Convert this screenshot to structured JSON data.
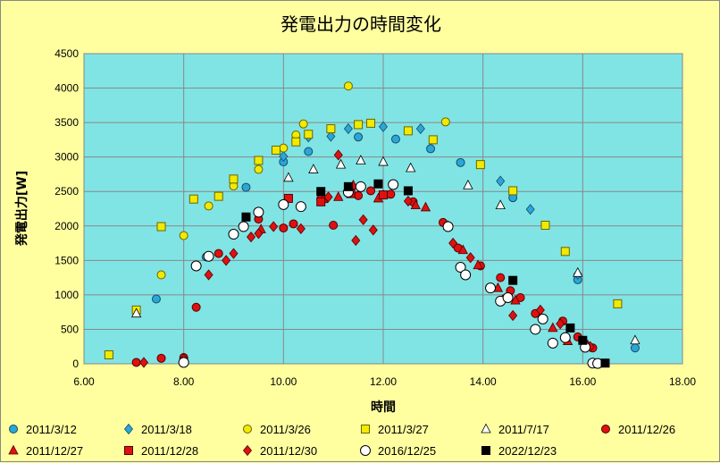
{
  "chart_data": {
    "type": "scatter",
    "title": "発電出力の時間変化",
    "xlabel": "時間",
    "ylabel": "発電出力[W]",
    "xlim": [
      6,
      18
    ],
    "ylim": [
      0,
      4500
    ],
    "xticks": [
      "6.00",
      "8.00",
      "10.00",
      "12.00",
      "14.00",
      "16.00",
      "18.00"
    ],
    "yticks": [
      "0",
      "500",
      "1000",
      "1500",
      "2000",
      "2500",
      "3000",
      "3500",
      "4000",
      "4500"
    ],
    "grid": true,
    "legend_position": "bottom",
    "plot_bg": "#80e4e4",
    "page_bg": "#ffffa0",
    "series": [
      {
        "name": "2011/3/12",
        "marker": "circle",
        "fill": "#2aa7d6",
        "stroke": "#1a4a6a",
        "points": [
          [
            7.45,
            940
          ],
          [
            8.45,
            1550
          ],
          [
            9.25,
            2560
          ],
          [
            10.0,
            2930
          ],
          [
            10.5,
            3080
          ],
          [
            11.5,
            3290
          ],
          [
            12.25,
            3260
          ],
          [
            12.95,
            3120
          ],
          [
            13.55,
            2920
          ],
          [
            14.6,
            2410
          ],
          [
            15.9,
            1220
          ],
          [
            17.05,
            230
          ]
        ]
      },
      {
        "name": "2011/3/18",
        "marker": "diamond",
        "fill": "#2aa7d6",
        "stroke": "#1a4a6a",
        "points": [
          [
            10.0,
            3010
          ],
          [
            10.5,
            3290
          ],
          [
            10.95,
            3300
          ],
          [
            11.3,
            3410
          ],
          [
            12.0,
            3440
          ],
          [
            12.75,
            3410
          ],
          [
            14.35,
            2650
          ],
          [
            14.95,
            2240
          ],
          [
            15.9,
            1300
          ]
        ]
      },
      {
        "name": "2011/3/26",
        "marker": "circle",
        "fill": "#f2ea00",
        "stroke": "#6b6500",
        "points": [
          [
            7.55,
            1290
          ],
          [
            8.0,
            1860
          ],
          [
            8.5,
            2290
          ],
          [
            9.0,
            2580
          ],
          [
            9.5,
            2820
          ],
          [
            10.0,
            3130
          ],
          [
            10.25,
            3320
          ],
          [
            10.4,
            3480
          ],
          [
            11.3,
            4030
          ],
          [
            13.25,
            3510
          ]
        ]
      },
      {
        "name": "2011/3/27",
        "marker": "square",
        "fill": "#f2ea00",
        "stroke": "#6b6500",
        "points": [
          [
            6.5,
            130
          ],
          [
            7.05,
            780
          ],
          [
            7.55,
            1990
          ],
          [
            8.2,
            2390
          ],
          [
            8.7,
            2430
          ],
          [
            9.0,
            2680
          ],
          [
            9.5,
            2950
          ],
          [
            9.85,
            3100
          ],
          [
            10.25,
            3220
          ],
          [
            10.5,
            3330
          ],
          [
            10.95,
            3410
          ],
          [
            11.5,
            3470
          ],
          [
            11.75,
            3490
          ],
          [
            12.5,
            3380
          ],
          [
            13.0,
            3250
          ],
          [
            13.95,
            2890
          ],
          [
            14.6,
            2510
          ],
          [
            15.25,
            2010
          ],
          [
            15.65,
            1630
          ],
          [
            16.7,
            870
          ]
        ]
      },
      {
        "name": "2011/7/17",
        "marker": "triangle-open",
        "fill": "#ffffff",
        "stroke": "#000000",
        "points": [
          [
            7.05,
            730
          ],
          [
            10.1,
            2700
          ],
          [
            10.6,
            2820
          ],
          [
            11.15,
            2890
          ],
          [
            11.55,
            2950
          ],
          [
            12.0,
            2930
          ],
          [
            12.55,
            2840
          ],
          [
            13.7,
            2590
          ],
          [
            14.35,
            2300
          ],
          [
            15.9,
            1320
          ],
          [
            17.05,
            340
          ]
        ]
      },
      {
        "name": "2011/12/26",
        "marker": "circle",
        "fill": "#e01010",
        "stroke": "#500000",
        "points": [
          [
            7.05,
            20
          ],
          [
            7.55,
            80
          ],
          [
            8.0,
            90
          ],
          [
            8.25,
            820
          ],
          [
            8.7,
            1600
          ],
          [
            9.5,
            2100
          ],
          [
            10.0,
            1970
          ],
          [
            10.2,
            2030
          ],
          [
            10.75,
            2390
          ],
          [
            11.0,
            2010
          ],
          [
            11.5,
            2440
          ],
          [
            11.75,
            2510
          ],
          [
            12.15,
            2460
          ],
          [
            12.6,
            2350
          ],
          [
            13.2,
            2050
          ],
          [
            13.5,
            1680
          ],
          [
            13.95,
            1420
          ],
          [
            14.35,
            1250
          ],
          [
            14.55,
            1060
          ],
          [
            14.75,
            960
          ],
          [
            15.05,
            730
          ],
          [
            15.6,
            620
          ],
          [
            15.9,
            390
          ],
          [
            16.2,
            230
          ]
        ]
      },
      {
        "name": "2011/12/27",
        "marker": "triangle",
        "fill": "#e01010",
        "stroke": "#500000",
        "points": [
          [
            9.55,
            1950
          ],
          [
            10.8,
            2390
          ],
          [
            11.1,
            2420
          ],
          [
            11.4,
            2590
          ],
          [
            11.9,
            2400
          ],
          [
            12.0,
            2450
          ],
          [
            12.65,
            2300
          ],
          [
            12.85,
            2270
          ],
          [
            13.3,
            2000
          ],
          [
            13.6,
            1650
          ],
          [
            13.9,
            1430
          ],
          [
            14.3,
            1100
          ],
          [
            14.65,
            920
          ],
          [
            15.4,
            520
          ],
          [
            15.7,
            330
          ],
          [
            16.1,
            270
          ]
        ]
      },
      {
        "name": "2011/12/28",
        "marker": "square",
        "fill": "#e01010",
        "stroke": "#500000",
        "points": [
          [
            10.1,
            2400
          ],
          [
            10.75,
            2350
          ],
          [
            11.35,
            2470
          ],
          [
            12.0,
            2450
          ]
        ]
      },
      {
        "name": "2011/12/30",
        "marker": "diamond",
        "fill": "#e01010",
        "stroke": "#500000",
        "points": [
          [
            7.2,
            20
          ],
          [
            8.0,
            70
          ],
          [
            8.5,
            1290
          ],
          [
            8.85,
            1500
          ],
          [
            9.0,
            1600
          ],
          [
            9.35,
            1840
          ],
          [
            9.5,
            1890
          ],
          [
            9.8,
            1990
          ],
          [
            10.35,
            1960
          ],
          [
            10.9,
            2420
          ],
          [
            11.1,
            3030
          ],
          [
            11.45,
            1790
          ],
          [
            11.6,
            2090
          ],
          [
            11.8,
            1940
          ],
          [
            12.5,
            2360
          ],
          [
            13.4,
            1750
          ],
          [
            13.75,
            1540
          ],
          [
            14.4,
            930
          ],
          [
            14.6,
            700
          ],
          [
            15.15,
            780
          ],
          [
            15.55,
            580
          ],
          [
            16.15,
            250
          ]
        ]
      },
      {
        "name": "2016/12/25",
        "marker": "circle-open",
        "fill": "#ffffff",
        "stroke": "#000000",
        "points": [
          [
            8.0,
            20
          ],
          [
            8.25,
            1420
          ],
          [
            8.5,
            1560
          ],
          [
            9.0,
            1880
          ],
          [
            9.2,
            1990
          ],
          [
            9.5,
            2200
          ],
          [
            10.0,
            2310
          ],
          [
            10.35,
            2280
          ],
          [
            11.3,
            2490
          ],
          [
            11.55,
            2570
          ],
          [
            12.2,
            2600
          ],
          [
            13.3,
            1990
          ],
          [
            13.55,
            1400
          ],
          [
            13.65,
            1290
          ],
          [
            14.15,
            1100
          ],
          [
            14.35,
            910
          ],
          [
            14.5,
            960
          ],
          [
            15.05,
            500
          ],
          [
            15.2,
            650
          ],
          [
            15.4,
            300
          ],
          [
            15.65,
            380
          ],
          [
            16.05,
            240
          ],
          [
            16.2,
            10
          ],
          [
            16.3,
            5
          ]
        ]
      },
      {
        "name": "2022/12/23",
        "marker": "square",
        "fill": "#000000",
        "stroke": "#000000",
        "points": [
          [
            9.25,
            2130
          ],
          [
            10.75,
            2500
          ],
          [
            11.3,
            2570
          ],
          [
            11.9,
            2610
          ],
          [
            12.5,
            2510
          ],
          [
            14.6,
            1210
          ],
          [
            15.75,
            520
          ],
          [
            16.0,
            340
          ],
          [
            16.45,
            10
          ]
        ]
      }
    ]
  }
}
